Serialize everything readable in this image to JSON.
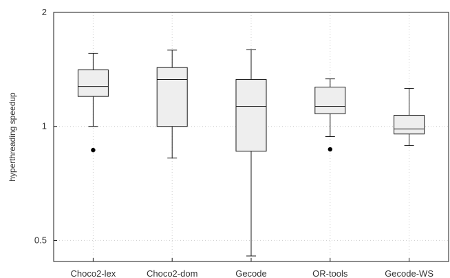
{
  "chart_data": {
    "type": "box",
    "title": "",
    "xlabel": "",
    "ylabel": "hyperthreading speedup",
    "yscale": "log",
    "ylim": [
      0.44,
      2
    ],
    "yticks": [
      {
        "value": 0.5,
        "label": "0.5"
      },
      {
        "value": 1,
        "label": "1"
      },
      {
        "value": 2,
        "label": "2"
      }
    ],
    "grid": true,
    "categories": [
      "Choco2-lex",
      "Choco2-dom",
      "Gecode",
      "OR-tools",
      "Gecode-WS"
    ],
    "boxes": [
      {
        "name": "Choco2-lex",
        "whisker_low": 1.0,
        "q1": 1.2,
        "median": 1.275,
        "q3": 1.41,
        "whisker_high": 1.56,
        "outliers": [
          0.866
        ]
      },
      {
        "name": "Choco2-dom",
        "whisker_low": 0.825,
        "q1": 1.0,
        "median": 1.33,
        "q3": 1.43,
        "whisker_high": 1.59,
        "outliers": []
      },
      {
        "name": "Gecode",
        "whisker_low": 0.455,
        "q1": 0.86,
        "median": 1.13,
        "q3": 1.33,
        "whisker_high": 1.595,
        "outliers": []
      },
      {
        "name": "OR-tools",
        "whisker_low": 0.94,
        "q1": 1.08,
        "median": 1.13,
        "q3": 1.27,
        "whisker_high": 1.335,
        "outliers": [
          0.87
        ]
      },
      {
        "name": "Gecode-WS",
        "whisker_low": 0.89,
        "q1": 0.955,
        "median": 0.985,
        "q3": 1.07,
        "whisker_high": 1.26,
        "outliers": []
      }
    ],
    "colors": {
      "box_fill": "#eeeeee",
      "stroke": "#1a1a1a",
      "grid": "#cccccc"
    }
  }
}
